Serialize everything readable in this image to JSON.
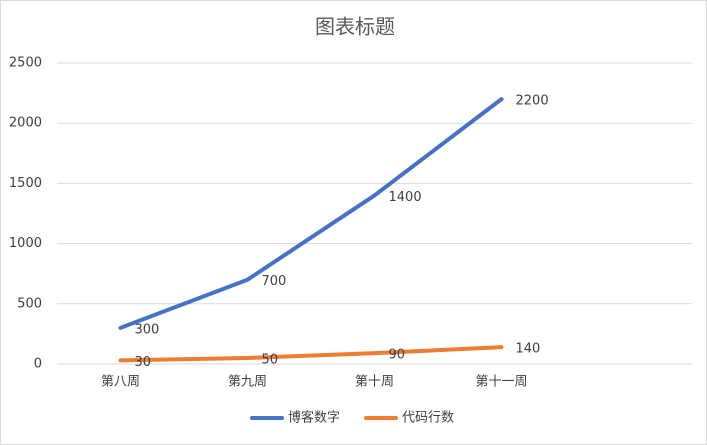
{
  "chart_data": {
    "type": "line",
    "title": "图表标题",
    "categories": [
      "第八周",
      "第九周",
      "第十周",
      "第十一周",
      null
    ],
    "series": [
      {
        "name": "博客数字",
        "color": "#4472c4",
        "values": [
          300,
          700,
          1400,
          2200,
          null
        ]
      },
      {
        "name": "代码行数",
        "color": "#ed7d31",
        "values": [
          30,
          50,
          90,
          140,
          null
        ]
      }
    ],
    "ylim": [
      0,
      2500
    ],
    "yticks": [
      0,
      500,
      1000,
      1500,
      2000,
      2500
    ],
    "grid": true,
    "legend": "bottom",
    "data_labels": true
  }
}
